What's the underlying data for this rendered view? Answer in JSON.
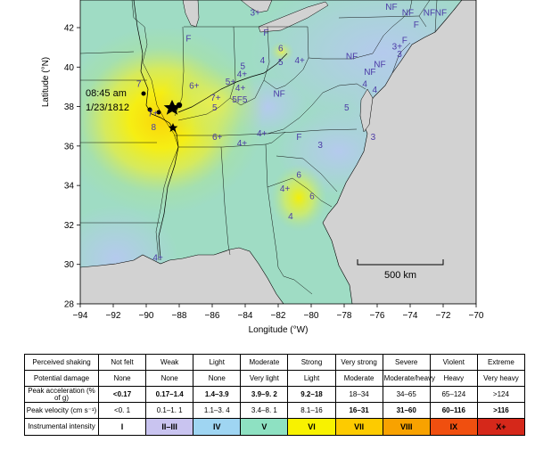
{
  "axes": {
    "xlabel": "Longitude (°W)",
    "ylabel": "Latitude (°N)",
    "xticks": [
      "−94",
      "−92",
      "−90",
      "−88",
      "−86",
      "−84",
      "−82",
      "−80",
      "−78",
      "−76",
      "−74",
      "−72",
      "−70"
    ],
    "yticks": [
      "42",
      "40",
      "38",
      "36",
      "34",
      "32",
      "30",
      "28"
    ]
  },
  "annotation": {
    "time": "08:45 am",
    "date": "1/23/1812"
  },
  "scale_bar": {
    "label": "500 km"
  },
  "intensity_labels": [
    {
      "t": "3+",
      "lon": -83.7,
      "lat": 42.6
    },
    {
      "t": "NF",
      "lon": -75.5,
      "lat": 42.9
    },
    {
      "t": "NF",
      "lon": -74.5,
      "lat": 42.6
    },
    {
      "t": "NF",
      "lon": -73.2,
      "lat": 42.6
    },
    {
      "t": "NF",
      "lon": -72.5,
      "lat": 42.6
    },
    {
      "t": "F",
      "lon": -73.8,
      "lat": 42.0
    },
    {
      "t": "F",
      "lon": -74.5,
      "lat": 41.2
    },
    {
      "t": "3+",
      "lon": -75.1,
      "lat": 40.9
    },
    {
      "t": "3",
      "lon": -74.8,
      "lat": 40.5
    },
    {
      "t": "F",
      "lon": -87.6,
      "lat": 41.3
    },
    {
      "t": "F",
      "lon": -82.9,
      "lat": 41.6
    },
    {
      "t": "6",
      "lon": -82.0,
      "lat": 40.8
    },
    {
      "t": "4",
      "lon": -83.1,
      "lat": 40.2
    },
    {
      "t": "5",
      "lon": -82.0,
      "lat": 40.1
    },
    {
      "t": "4+",
      "lon": -81.0,
      "lat": 40.2
    },
    {
      "t": "NF",
      "lon": -77.9,
      "lat": 40.4
    },
    {
      "t": "NF",
      "lon": -76.2,
      "lat": 40.0
    },
    {
      "t": "NF",
      "lon": -76.8,
      "lat": 39.6
    },
    {
      "t": "5",
      "lon": -84.3,
      "lat": 39.9
    },
    {
      "t": "4+",
      "lon": -84.5,
      "lat": 39.5
    },
    {
      "t": "5+",
      "lon": -85.2,
      "lat": 39.1
    },
    {
      "t": "4+",
      "lon": -84.6,
      "lat": 38.8
    },
    {
      "t": "NF",
      "lon": -82.3,
      "lat": 38.5
    },
    {
      "t": "4",
      "lon": -76.9,
      "lat": 39.0
    },
    {
      "t": "4",
      "lon": -76.3,
      "lat": 38.7
    },
    {
      "t": "6+",
      "lon": -87.4,
      "lat": 38.9
    },
    {
      "t": "7",
      "lon": -90.6,
      "lat": 39.0
    },
    {
      "t": "7+",
      "lon": -86.1,
      "lat": 38.3
    },
    {
      "t": "5",
      "lon": -86.0,
      "lat": 37.8
    },
    {
      "t": "5F5",
      "lon": -84.8,
      "lat": 38.2
    },
    {
      "t": "7+",
      "lon": -89.9,
      "lat": 37.5
    },
    {
      "t": "8",
      "lon": -89.7,
      "lat": 36.8
    },
    {
      "t": "5",
      "lon": -78.0,
      "lat": 37.8
    },
    {
      "t": "6+",
      "lon": -86.0,
      "lat": 36.3
    },
    {
      "t": "4+",
      "lon": -83.3,
      "lat": 36.5
    },
    {
      "t": "4+",
      "lon": -84.5,
      "lat": 36.0
    },
    {
      "t": "F",
      "lon": -80.9,
      "lat": 36.3
    },
    {
      "t": "3",
      "lon": -79.6,
      "lat": 35.9
    },
    {
      "t": "3",
      "lon": -76.4,
      "lat": 36.3
    },
    {
      "t": "6",
      "lon": -80.9,
      "lat": 34.4
    },
    {
      "t": "4+",
      "lon": -81.9,
      "lat": 33.7
    },
    {
      "t": "6",
      "lon": -80.1,
      "lat": 33.3
    },
    {
      "t": "4",
      "lon": -81.4,
      "lat": 32.3
    },
    {
      "t": "4+",
      "lon": -89.6,
      "lat": 30.2
    }
  ],
  "table": {
    "headers": [
      "Perceived shaking",
      "Potential damage",
      "Peak acceleration (% of g)",
      "Peak velocity (cm s⁻¹)",
      "Instrumental intensity"
    ],
    "shaking": [
      "Not felt",
      "Weak",
      "Light",
      "Moderate",
      "Strong",
      "Very strong",
      "Severe",
      "Violent",
      "Extreme"
    ],
    "damage": [
      "None",
      "None",
      "None",
      "Very light",
      "Light",
      "Moderate",
      "Moderate/heavy",
      "Heavy",
      "Very heavy"
    ],
    "acceleration": [
      "<0.17",
      "0.17–1.4",
      "1.4–3.9",
      "3.9–9. 2",
      "9.2–18",
      "18–34",
      "34–65",
      "65–124",
      ">124"
    ],
    "velocity": [
      "<0. 1",
      "0.1–1. 1",
      "1.1–3. 4",
      "3.4–8. 1",
      "8.1–16",
      "16–31",
      "31–60",
      "60–116",
      ">116"
    ],
    "intensity": [
      "I",
      "II–III",
      "IV",
      "V",
      "VI",
      "VII",
      "VIII",
      "IX",
      "X+"
    ]
  },
  "colors": {
    "ocean": "#d2d2d2",
    "intensity_cells": [
      "#ffffff",
      "#c9c4f0",
      "#9fd5f2",
      "#8ee1c2",
      "#f8f200",
      "#fdcb00",
      "#f8a200",
      "#f04f0f",
      "#d5281a"
    ]
  }
}
